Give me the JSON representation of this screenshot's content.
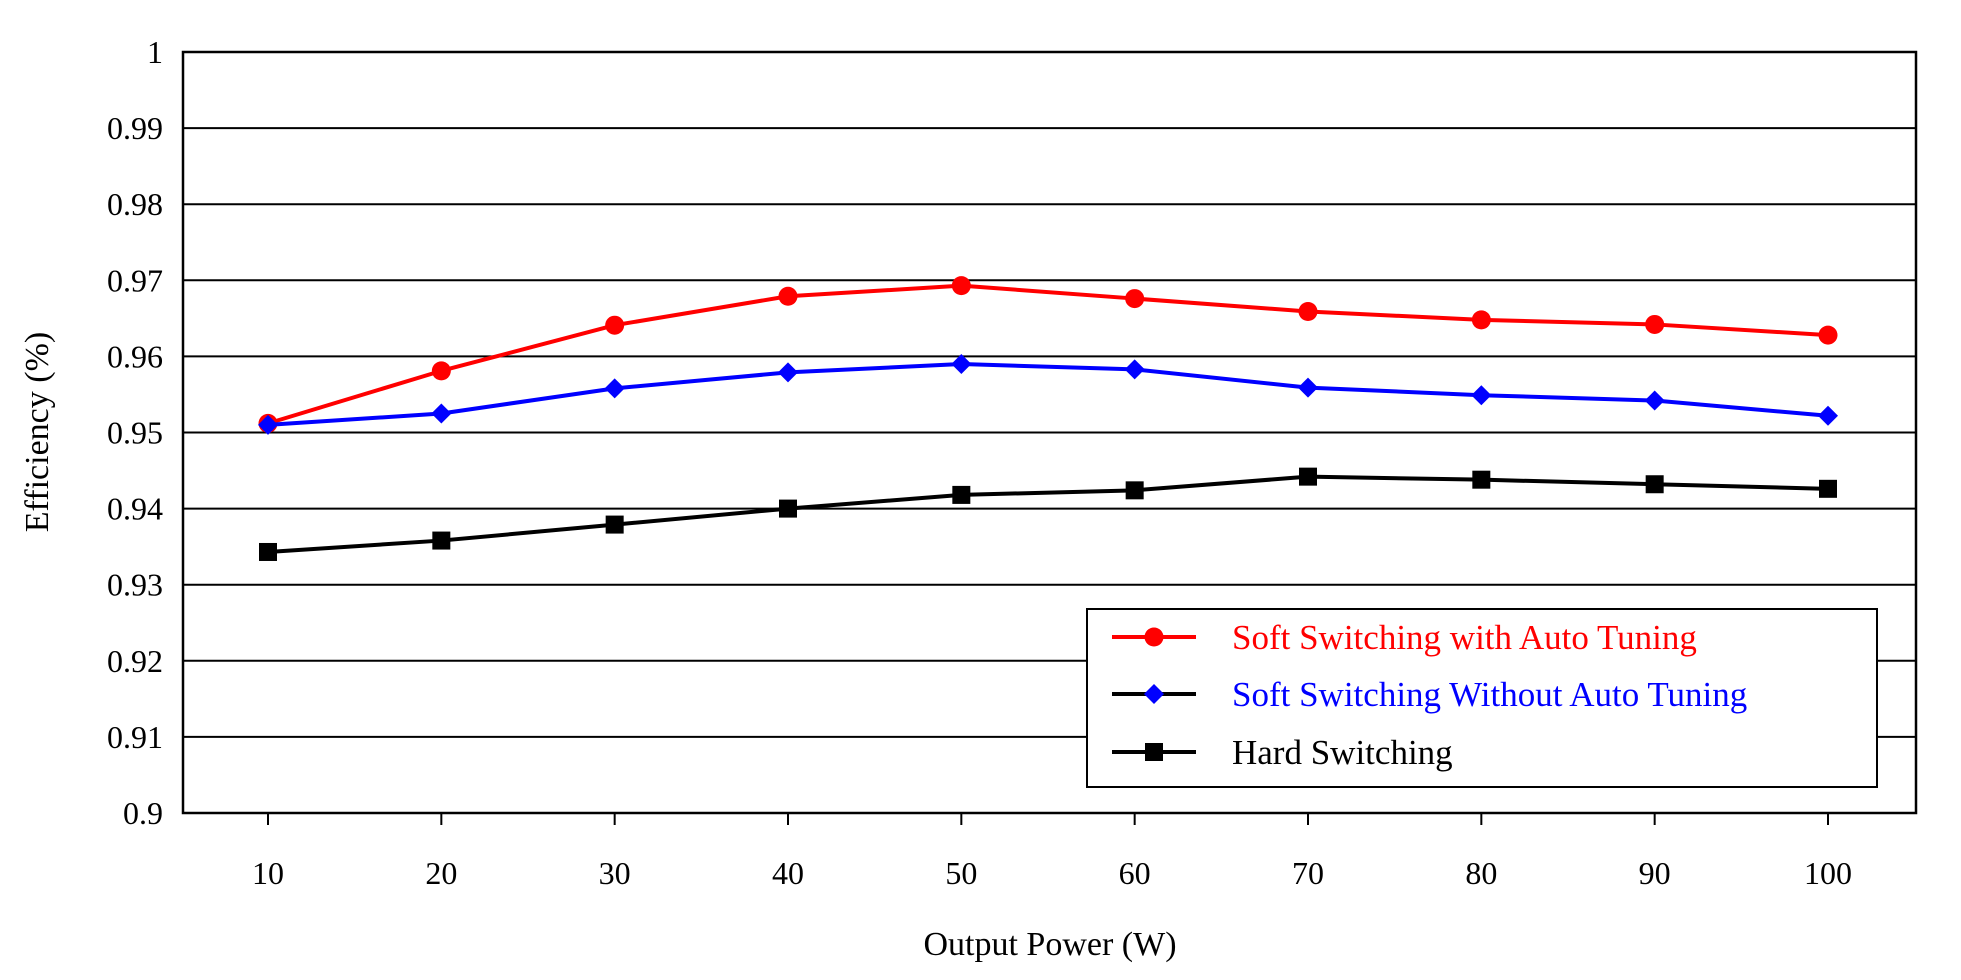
{
  "chart_data": {
    "type": "line",
    "title": "",
    "xlabel": "Output Power (W)",
    "ylabel": "Efficiency (%)",
    "x": [
      10,
      20,
      30,
      40,
      50,
      60,
      70,
      80,
      90,
      100
    ],
    "x_tick_labels": [
      "10",
      "20",
      "30",
      "40",
      "50",
      "60",
      "70",
      "80",
      "90",
      "100"
    ],
    "ylim": [
      0.9,
      1
    ],
    "y_ticks": [
      0.9,
      0.91,
      0.92,
      0.93,
      0.94,
      0.95,
      0.96,
      0.97,
      0.98,
      0.99,
      1
    ],
    "y_tick_labels": [
      "0.9",
      "0.91",
      "0.92",
      "0.93",
      "0.94",
      "0.95",
      "0.96",
      "0.97",
      "0.98",
      "0.99",
      "1"
    ],
    "grid": "horizontal",
    "legend_position": "bottom-right",
    "series": [
      {
        "name": "Soft Switching with Auto Tuning",
        "color": "#ff0000",
        "marker": "circle",
        "values": [
          0.9512,
          0.9581,
          0.9641,
          0.9679,
          0.9693,
          0.9676,
          0.9659,
          0.9648,
          0.9642,
          0.9628
        ]
      },
      {
        "name": "Soft Switching Without Auto Tuning",
        "color": "#0000ff",
        "marker": "diamond",
        "values": [
          0.951,
          0.9525,
          0.9558,
          0.9579,
          0.959,
          0.9583,
          0.9559,
          0.9549,
          0.9542,
          0.9522
        ]
      },
      {
        "name": "Hard Switching",
        "color": "#000000",
        "marker": "square",
        "values": [
          0.9343,
          0.9358,
          0.9379,
          0.94,
          0.9418,
          0.9424,
          0.9442,
          0.9438,
          0.9432,
          0.9426
        ]
      }
    ]
  }
}
